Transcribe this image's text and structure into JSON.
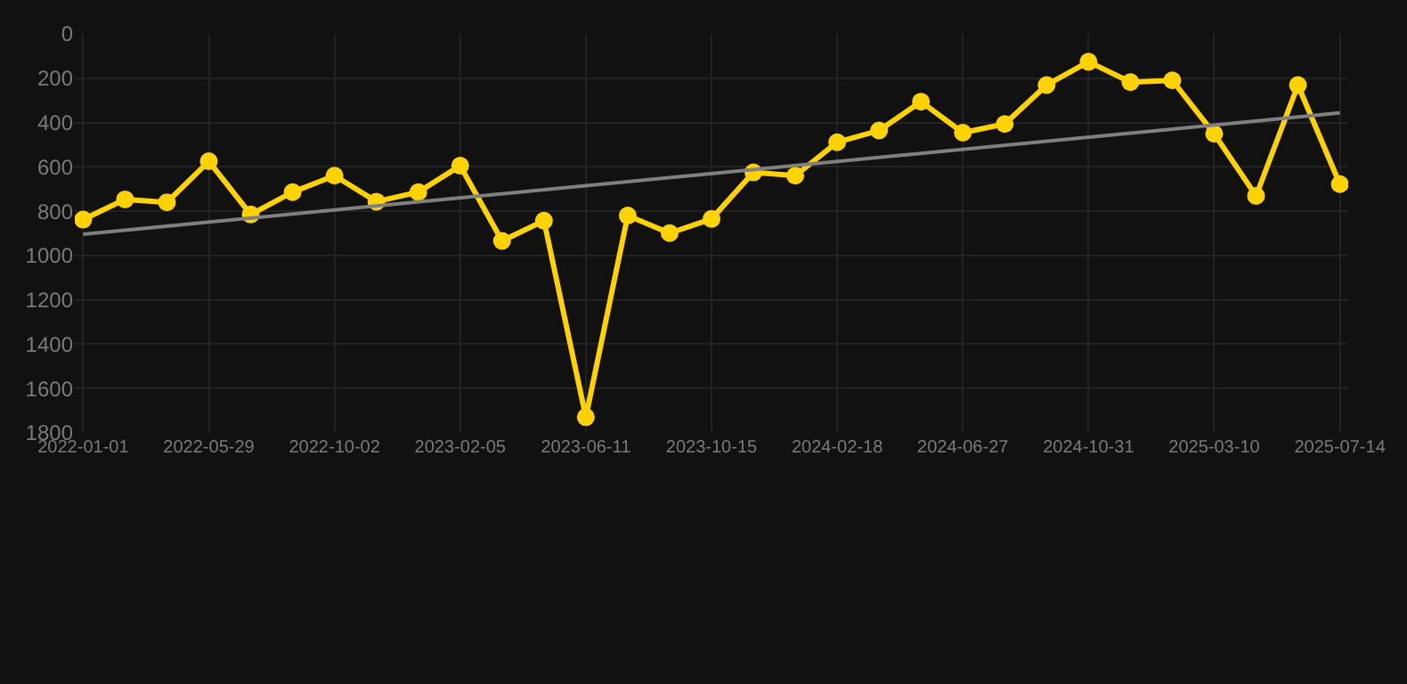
{
  "chart_data": {
    "type": "line",
    "categories": [
      "2022-01-01",
      null,
      null,
      "2022-05-29",
      null,
      null,
      "2022-10-02",
      null,
      null,
      "2023-02-05",
      null,
      null,
      "2023-06-11",
      null,
      null,
      "2023-10-15",
      null,
      null,
      "2024-02-18",
      null,
      null,
      "2024-06-27",
      null,
      null,
      "2024-10-31",
      null,
      null,
      "2025-03-10",
      null,
      null,
      "2025-07-14"
    ],
    "series": [
      {
        "color": "#ffd200",
        "marker": "circle",
        "values": [
          838,
          747,
          760,
          575,
          815,
          714,
          640,
          757,
          714,
          595,
          934,
          843,
          1729,
          820,
          899,
          835,
          625,
          640,
          489,
          436,
          306,
          446,
          407,
          231,
          126,
          218,
          210,
          451,
          731,
          231,
          678
        ]
      },
      {
        "color": "#808080",
        "marker": "none",
        "values": [
          904,
          null,
          null,
          null,
          null,
          null,
          null,
          null,
          null,
          null,
          null,
          null,
          null,
          null,
          null,
          null,
          null,
          null,
          null,
          null,
          null,
          null,
          null,
          null,
          null,
          null,
          null,
          null,
          null,
          null,
          357
        ]
      }
    ],
    "ylim": [
      1800,
      0
    ],
    "yticks": [
      0,
      200,
      400,
      600,
      800,
      1000,
      1200,
      1400,
      1600,
      1800
    ],
    "grid": true,
    "line_style": "solid"
  }
}
